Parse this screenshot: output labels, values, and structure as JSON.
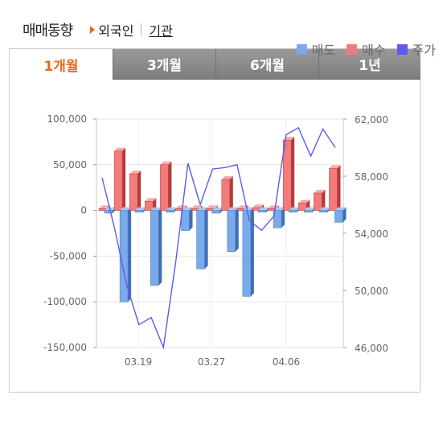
{
  "header": {
    "title": "매매동향",
    "link_foreigner": "외국인",
    "link_institution": "기관"
  },
  "tabs": [
    {
      "label": "1개월",
      "active": true
    },
    {
      "label": "3개월",
      "active": false
    },
    {
      "label": "6개월",
      "active": false
    },
    {
      "label": "1년",
      "active": false
    }
  ],
  "legend": [
    {
      "label": "매도",
      "color": "#7aaaea"
    },
    {
      "label": "매수",
      "color": "#f27b7b"
    },
    {
      "label": "주가",
      "color": "#5b5bf0"
    }
  ],
  "chart_data": {
    "type": "bar",
    "left_axis": {
      "ticks": [
        "100,000",
        "50,000",
        "0",
        "-50,000",
        "-100,000",
        "-150,000"
      ],
      "range": [
        -150000,
        100000
      ]
    },
    "right_axis": {
      "ticks": [
        "62,000",
        "58,000",
        "54,000",
        "50,000",
        "46,000"
      ],
      "range": [
        46000,
        62000
      ]
    },
    "x_ticks": [
      "03.19",
      "03.27",
      "04.06"
    ],
    "sell": [
      -3000,
      -100000,
      -2000,
      -82000,
      -2000,
      -22000,
      -64000,
      -3000,
      -45000,
      -94000,
      -2000,
      -19000,
      -2000,
      -2000,
      -2000,
      -13000
    ],
    "buy": [
      2000,
      65000,
      40000,
      10000,
      50000,
      2000,
      2000,
      2000,
      34000,
      2000,
      3000,
      2000,
      77000,
      8000,
      19000,
      46000
    ],
    "price": [
      57900,
      54400,
      50400,
      47600,
      48100,
      46000,
      52000,
      58900,
      56000,
      58500,
      58600,
      58800,
      54900,
      54200,
      55200,
      60900,
      61400,
      59400,
      61300,
      60000
    ],
    "grid": true
  }
}
